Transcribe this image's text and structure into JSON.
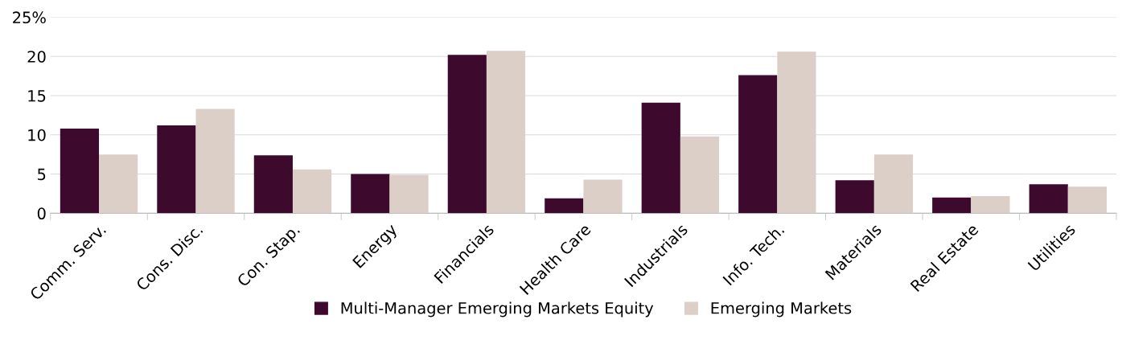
{
  "chart_data": {
    "type": "bar",
    "categories": [
      "Comm. Serv.",
      "Cons. Disc.",
      "Con. Stap.",
      "Energy",
      "Financials",
      "Health Care",
      "Industrials",
      "Info. Tech.",
      "Materials",
      "Real Estate",
      "Utilities"
    ],
    "series": [
      {
        "name": "Multi-Manager Emerging Markets Equity",
        "color": "#3d0a2e",
        "values": [
          10.8,
          11.2,
          7.4,
          5.0,
          20.2,
          1.9,
          14.1,
          17.6,
          4.2,
          2.0,
          3.7
        ]
      },
      {
        "name": "Emerging Markets",
        "color": "#dccfc8",
        "values": [
          7.5,
          13.3,
          5.6,
          4.9,
          20.7,
          4.3,
          9.8,
          20.6,
          7.5,
          2.2,
          3.4
        ]
      }
    ],
    "ylim": [
      0,
      25
    ],
    "yticks": [
      0,
      5,
      10,
      15,
      20,
      {
        "value": 25,
        "label": "25%"
      }
    ],
    "grid": "y",
    "legend": "bottom"
  }
}
